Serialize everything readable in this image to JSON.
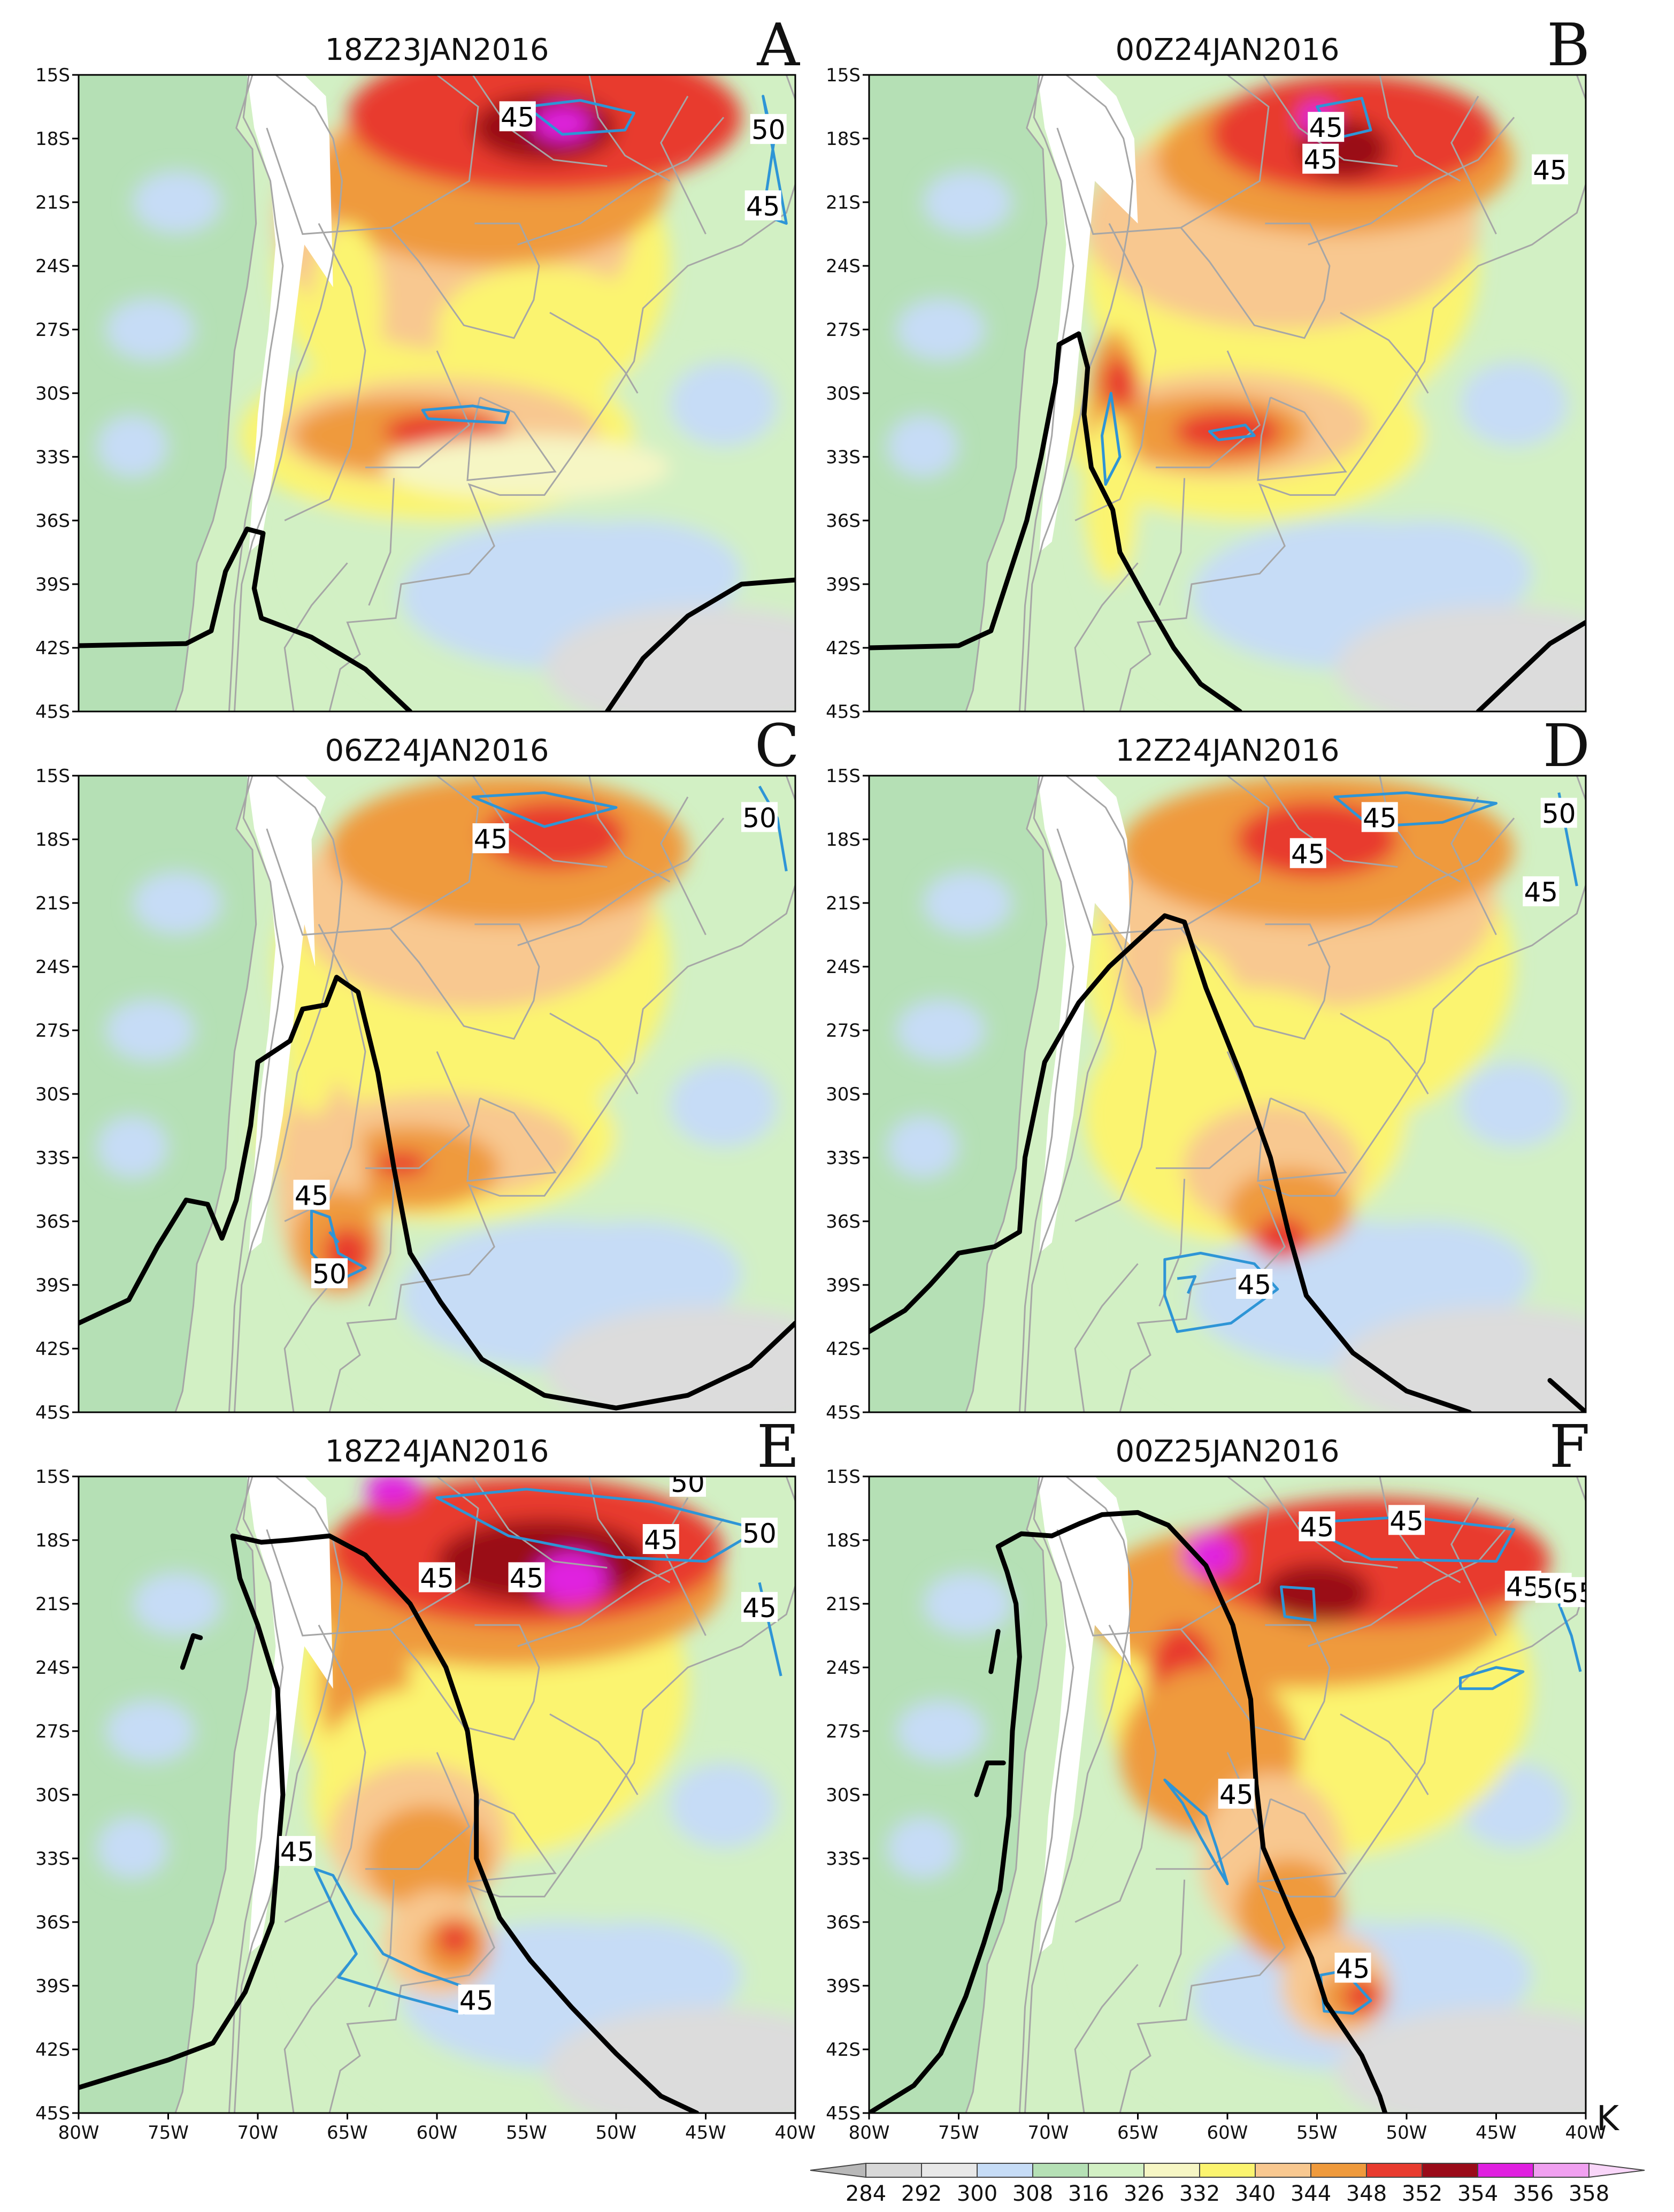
{
  "figure": {
    "unit": "K",
    "lat_ticks": [
      "15S",
      "18S",
      "21S",
      "24S",
      "27S",
      "30S",
      "33S",
      "36S",
      "39S",
      "42S",
      "45S"
    ],
    "lon_ticks": [
      "80W",
      "75W",
      "70W",
      "65W",
      "60W",
      "55W",
      "50W",
      "45W",
      "40W"
    ],
    "colorbar": {
      "levels": [
        "284",
        "292",
        "300",
        "308",
        "316",
        "326",
        "332",
        "340",
        "344",
        "348",
        "352",
        "354",
        "356",
        "358"
      ],
      "colors": [
        "#b8b8b8",
        "#d8d8d8",
        "#e8e8e8",
        "#c6dcf6",
        "#b5e0b5",
        "#d2f0c4",
        "#f6f6c4",
        "#fbf46f",
        "#f8c890",
        "#ef9a3c",
        "#e83b2e",
        "#9a0b19",
        "#e020e0",
        "#f0a0f0",
        "#f9d6f9"
      ]
    },
    "panels": [
      {
        "id": "A",
        "letter": "A",
        "title": "18Z23JAN2016",
        "contour_labels": [
          {
            "text": "45",
            "lon": -55.5,
            "lat": -17
          },
          {
            "text": "50",
            "lon": -41.5,
            "lat": -17.6
          },
          {
            "text": "45",
            "lon": -41.8,
            "lat": -21.2
          }
        ]
      },
      {
        "id": "B",
        "letter": "B",
        "title": "00Z24JAN2016",
        "contour_labels": [
          {
            "text": "45",
            "lon": -54.5,
            "lat": -17.5
          },
          {
            "text": "45",
            "lon": -54.8,
            "lat": -19
          },
          {
            "text": "45",
            "lon": -42,
            "lat": -19.5
          }
        ]
      },
      {
        "id": "C",
        "letter": "C",
        "title": "06Z24JAN2016",
        "contour_labels": [
          {
            "text": "45",
            "lon": -57,
            "lat": -18
          },
          {
            "text": "50",
            "lon": -42,
            "lat": -17
          },
          {
            "text": "45",
            "lon": -67,
            "lat": -34.8
          },
          {
            "text": "50",
            "lon": -66,
            "lat": -38.5
          }
        ]
      },
      {
        "id": "D",
        "letter": "D",
        "title": "12Z24JAN2016",
        "contour_labels": [
          {
            "text": "45",
            "lon": -51.5,
            "lat": -17
          },
          {
            "text": "50",
            "lon": -41.5,
            "lat": -16.8
          },
          {
            "text": "45",
            "lon": -55.5,
            "lat": -18.7
          },
          {
            "text": "45",
            "lon": -42.5,
            "lat": -20.5
          },
          {
            "text": "45",
            "lon": -58.5,
            "lat": -39
          }
        ]
      },
      {
        "id": "E",
        "letter": "E",
        "title": "18Z24JAN2016",
        "contour_labels": [
          {
            "text": "50",
            "lon": -46,
            "lat": -15.3
          },
          {
            "text": "45",
            "lon": -47.5,
            "lat": -18
          },
          {
            "text": "50",
            "lon": -42,
            "lat": -17.7
          },
          {
            "text": "45",
            "lon": -60,
            "lat": -19.8
          },
          {
            "text": "45",
            "lon": -55,
            "lat": -19.8
          },
          {
            "text": "45",
            "lon": -42,
            "lat": -21.2
          },
          {
            "text": "45",
            "lon": -67.8,
            "lat": -32.7
          },
          {
            "text": "45",
            "lon": -57.8,
            "lat": -39.7
          }
        ]
      },
      {
        "id": "F",
        "letter": "F",
        "title": "00Z25JAN2016",
        "contour_labels": [
          {
            "text": "45",
            "lon": -55,
            "lat": -17.4
          },
          {
            "text": "45",
            "lon": -50,
            "lat": -17.1
          },
          {
            "text": "45",
            "lon": -43.5,
            "lat": -20.2
          },
          {
            "text": "50",
            "lon": -41.8,
            "lat": -20.3
          },
          {
            "text": "55",
            "lon": -40.4,
            "lat": -20.5
          },
          {
            "text": "45",
            "lon": -59.5,
            "lat": -30
          },
          {
            "text": "45",
            "lon": -53,
            "lat": -38.2
          }
        ]
      }
    ]
  }
}
